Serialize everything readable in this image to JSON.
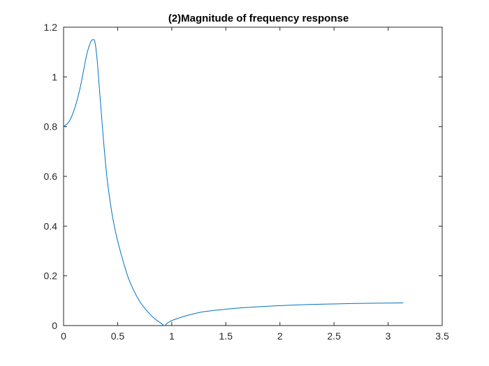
{
  "chart_data": {
    "type": "line",
    "title": "(2)Magnitude of frequency response",
    "xlabel": "",
    "ylabel": "",
    "xlim": [
      0,
      3.5
    ],
    "ylim": [
      0,
      1.2
    ],
    "x_ticks": [
      0,
      0.5,
      1,
      1.5,
      2,
      2.5,
      3,
      3.5
    ],
    "x_tick_labels": [
      "0",
      "0.5",
      "1",
      "1.5",
      "2",
      "2.5",
      "3",
      "3.5"
    ],
    "y_ticks": [
      0,
      0.2,
      0.4,
      0.6,
      0.8,
      1,
      1.2
    ],
    "y_tick_labels": [
      "0",
      "0.2",
      "0.4",
      "0.6",
      "0.8",
      "1",
      "1.2"
    ],
    "grid": false,
    "box": true,
    "line_color": "#0072BD",
    "axis_color": "#262626",
    "series": [
      {
        "x": [
          0,
          0.05,
          0.1,
          0.15,
          0.2,
          0.22,
          0.25,
          0.27,
          0.29,
          0.31,
          0.33,
          0.35,
          0.37,
          0.4,
          0.43,
          0.46,
          0.5,
          0.55,
          0.6,
          0.65,
          0.7,
          0.75,
          0.8,
          0.85,
          0.9,
          0.93,
          0.96,
          1.0,
          1.1,
          1.2,
          1.3,
          1.5,
          1.7,
          1.9,
          2.1,
          2.3,
          2.5,
          2.7,
          2.9,
          3.14
        ],
        "y": [
          0.8,
          0.82,
          0.87,
          0.95,
          1.06,
          1.1,
          1.14,
          1.15,
          1.14,
          1.07,
          0.96,
          0.85,
          0.74,
          0.6,
          0.5,
          0.42,
          0.34,
          0.26,
          0.19,
          0.14,
          0.1,
          0.07,
          0.045,
          0.025,
          0.01,
          0.0,
          0.01,
          0.02,
          0.035,
          0.047,
          0.056,
          0.066,
          0.073,
          0.078,
          0.082,
          0.085,
          0.087,
          0.089,
          0.09,
          0.091
        ]
      }
    ]
  }
}
